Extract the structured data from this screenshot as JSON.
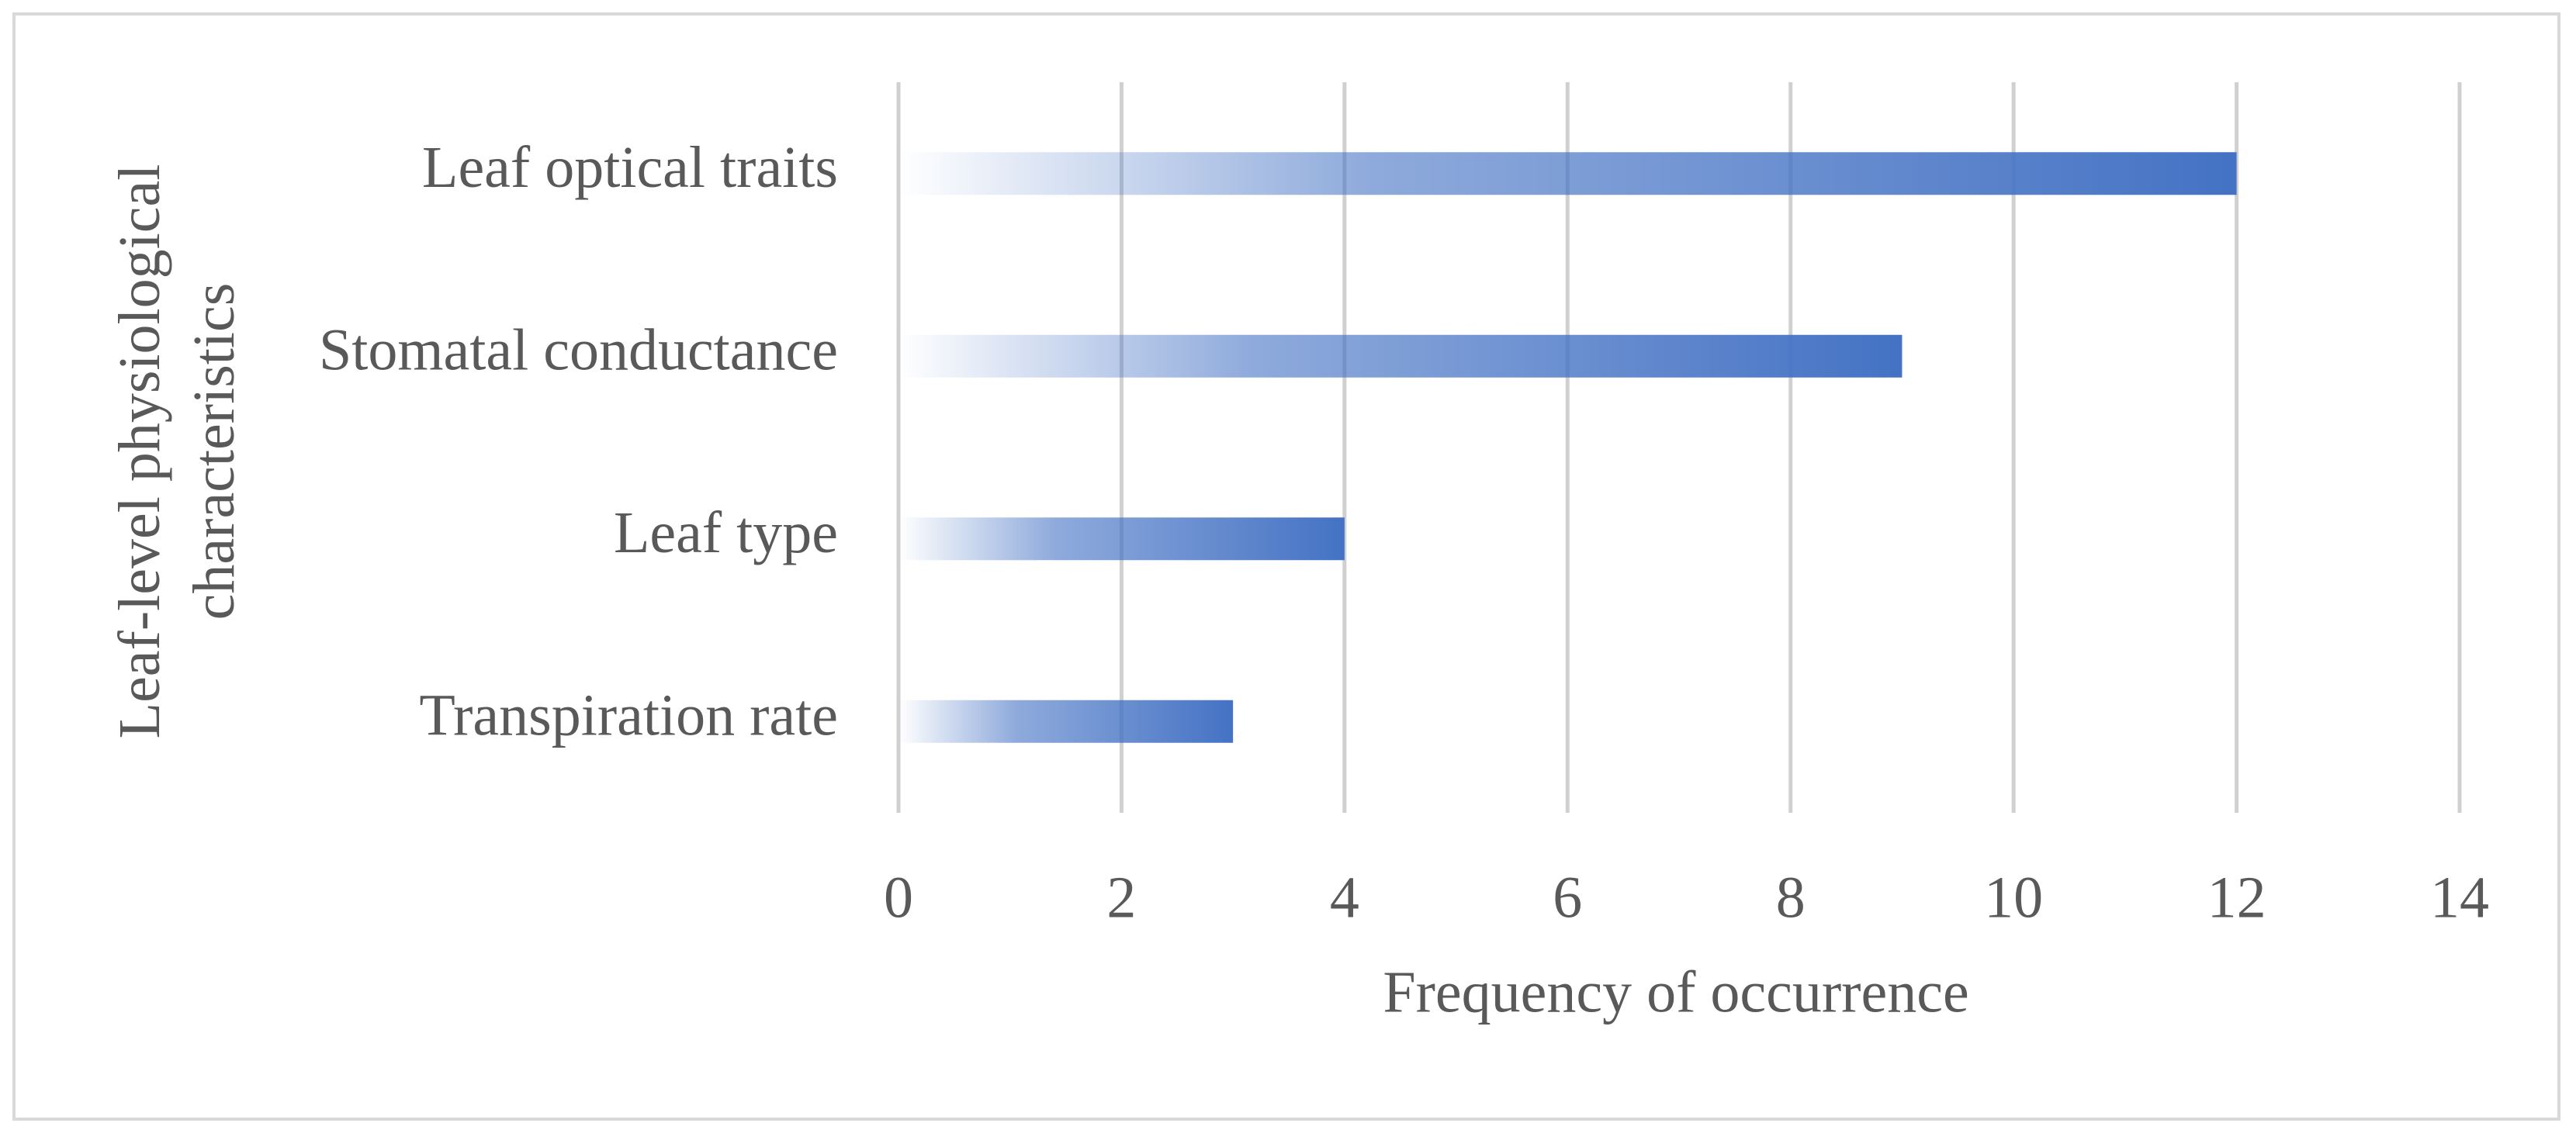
{
  "chart_data": {
    "type": "hbar",
    "categories": [
      "Leaf optical traits",
      "Stomatal conductance",
      "Leaf type",
      "Transpiration rate"
    ],
    "values": [
      12,
      9,
      4,
      3
    ],
    "color": "#4472c4",
    "xlabel": "Frequency of occurrence",
    "ylabel": "Leaf-level physiological characteristics",
    "xlim": [
      0,
      14
    ],
    "xticks": [
      0,
      2,
      4,
      6,
      8,
      10,
      12,
      14
    ],
    "grid": true
  }
}
